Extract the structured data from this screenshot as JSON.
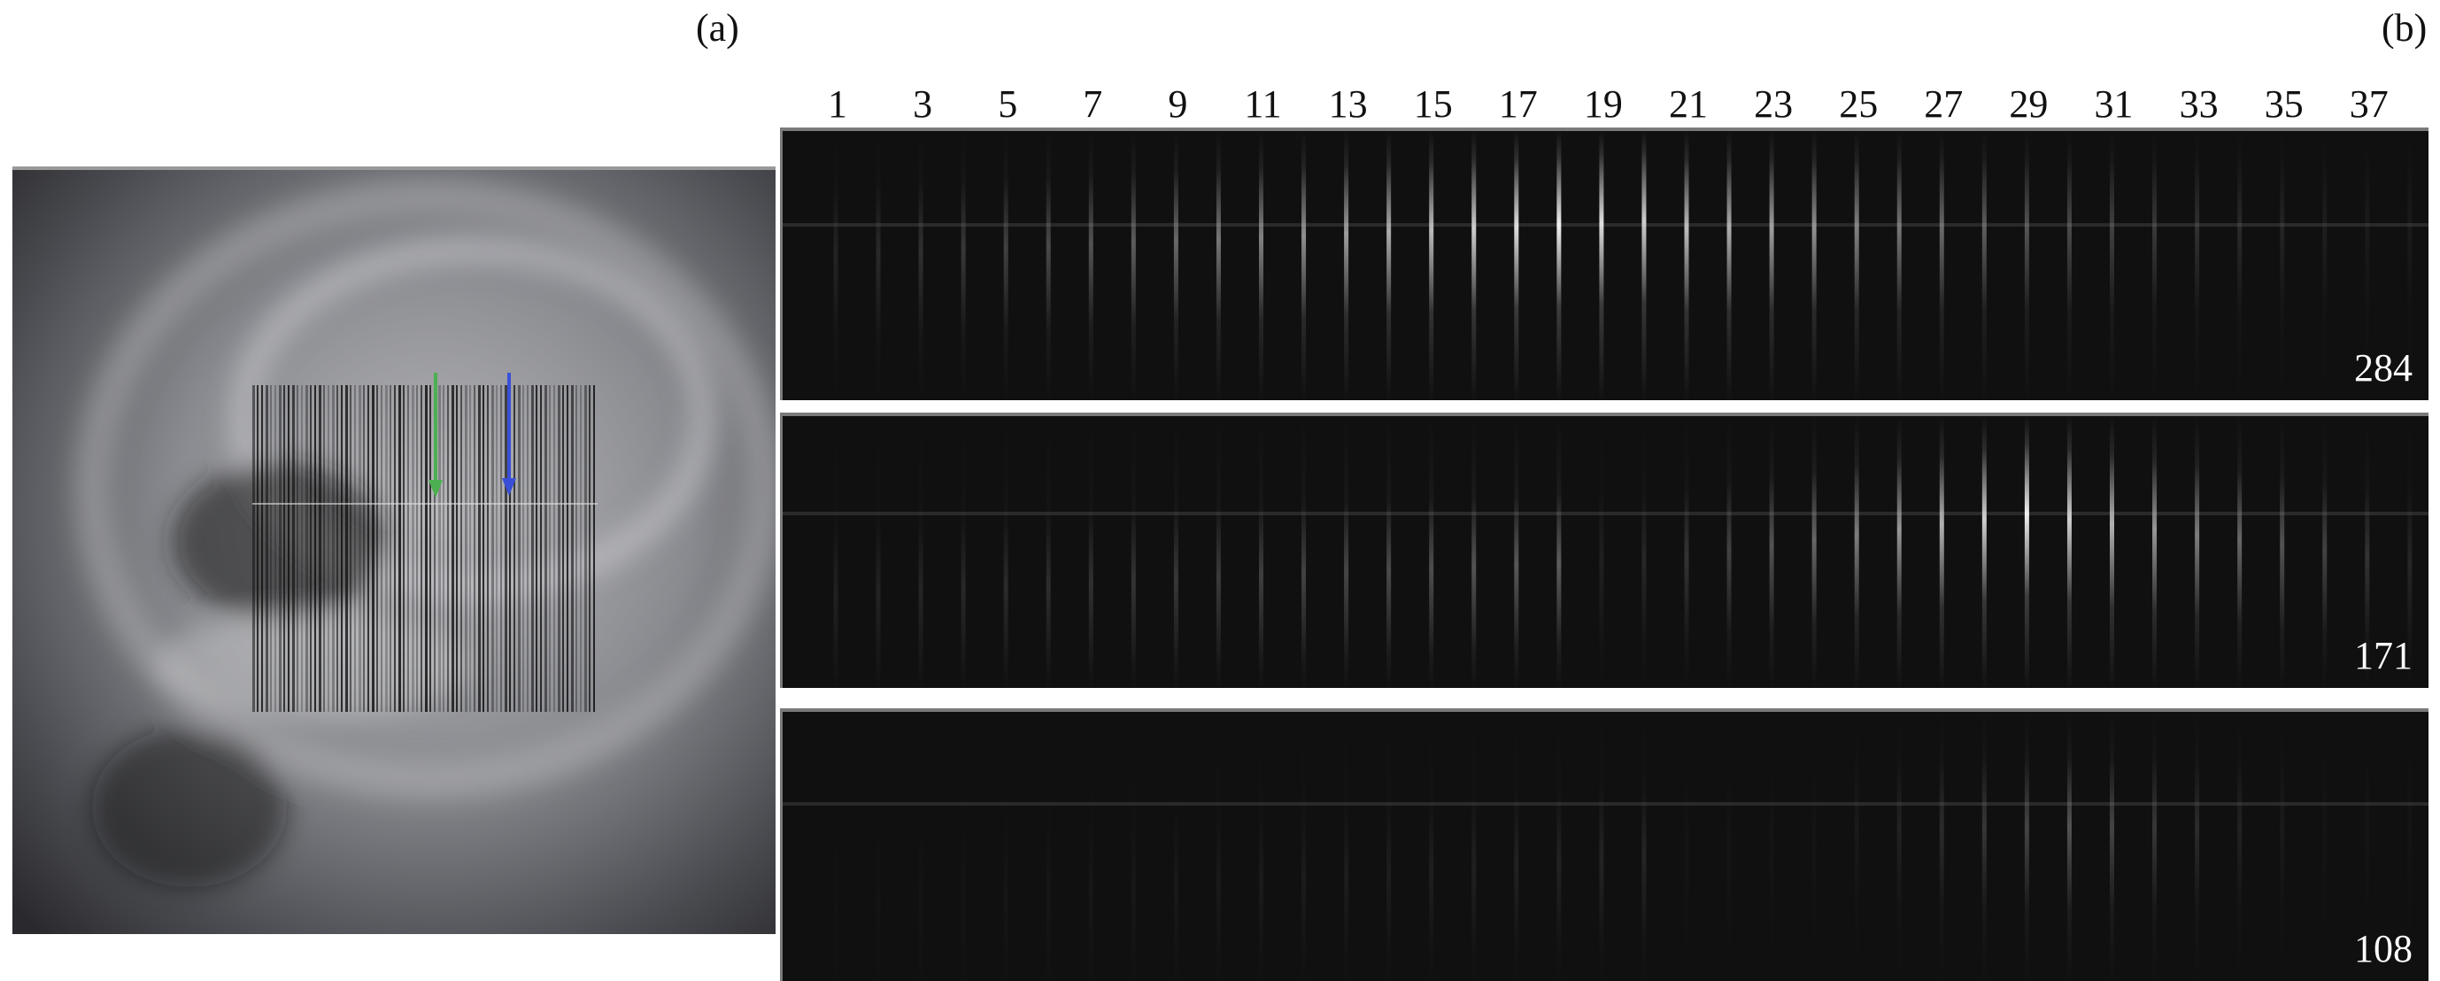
{
  "figure": {
    "panel_a_label": "(a)",
    "panel_b_label": "(b)",
    "slit_numbers": [
      "1",
      "3",
      "5",
      "7",
      "9",
      "11",
      "13",
      "15",
      "17",
      "19",
      "21",
      "23",
      "25",
      "27",
      "29",
      "31",
      "33",
      "35",
      "37"
    ],
    "panels": [
      {
        "label": "284"
      },
      {
        "label": "171"
      },
      {
        "label": "108"
      }
    ],
    "arrows": {
      "green": "#4caf50",
      "blue": "#3a4fd8"
    },
    "colors": {
      "panel_background": "#101010",
      "panel_border": "#7a7a7a"
    }
  }
}
